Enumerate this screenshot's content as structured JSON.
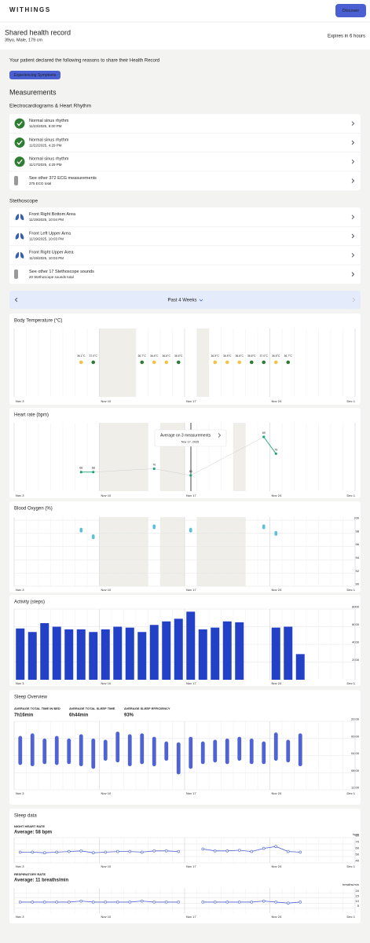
{
  "header": {
    "logo": "WITHINGS",
    "button": "Discover"
  },
  "record": {
    "title": "Shared health record",
    "subtitle": "39yo, Male, 179 cm",
    "expiry": "Expires in 6 hours"
  },
  "reasons": {
    "intro": "Your patient declared the following reasons to share their Health Record",
    "tags": [
      "Experiencing Symptoms"
    ]
  },
  "measurements": {
    "title": "Measurements",
    "ecg": {
      "title": "Electrocardiograms & Heart Rhythm",
      "items": [
        {
          "title": "Normal sinus rhythm",
          "date": "11/23/2025, 8:00 PM"
        },
        {
          "title": "Normal sinus rhythm",
          "date": "11/22/2025, 4:29 PM"
        },
        {
          "title": "Normal sinus rhythm",
          "date": "11/17/2025, 4:29 PM"
        }
      ],
      "more": {
        "title": "See other 372 ECG measurements",
        "subtitle": "375 ECG total"
      }
    },
    "stethoscope": {
      "title": "Stethoscope",
      "items": [
        {
          "title": "Front Right Bottom Area",
          "date": "11/19/2025, 10:04 PM"
        },
        {
          "title": "Front Left Upper Area",
          "date": "11/19/2025, 10:03 PM"
        },
        {
          "title": "Front Right Upper Area",
          "date": "11/19/2025, 10:03 PM"
        }
      ],
      "more": {
        "title": "See other 17 Stethoscope sounds",
        "subtitle": "20 Stethoscope sounds total"
      }
    }
  },
  "period": {
    "label": "Past 4 Weeks"
  },
  "timeline": {
    "xlim": [
      3,
      31
    ],
    "xticks": [
      {
        "value": 3,
        "label": "Nov 3"
      },
      {
        "value": 10,
        "label": "Nov 10"
      },
      {
        "value": 17,
        "label": "Nov 17"
      },
      {
        "value": 24,
        "label": "Nov 24"
      },
      {
        "value": 31,
        "label": "Dec 1"
      }
    ]
  },
  "charts": [
    {
      "type": "dots",
      "title": "Body Temperature (°C)",
      "shaded": [
        [
          10,
          13
        ],
        [
          18,
          19
        ]
      ],
      "x": [
        8,
        9,
        13,
        14,
        15,
        16,
        19,
        20,
        21,
        22,
        23,
        24,
        25
      ],
      "values": [
        36.1,
        37,
        36.7,
        36.6,
        36.6,
        36.6,
        36.5,
        36.5,
        36.6,
        36.6,
        37,
        36.5,
        36.7
      ],
      "value_labels": [
        "36.1°C",
        "37.0°C",
        "36.7°C",
        "36.6°C",
        "36.6°C",
        "36.6°C",
        "36.5°C",
        "36.5°C",
        "36.6°C",
        "36.6°C",
        "37.0°C",
        "36.5°C",
        "36.7°C"
      ],
      "colors": [
        "#f4c245",
        "#2e7d32",
        "#2e7d32",
        "#f4c245",
        "#f4c245",
        "#2e7d32",
        "#f4c245",
        "#f4c245",
        "#f4c245",
        "#2e7d32",
        "#2e7d32",
        "#f4c245",
        "#2e7d32"
      ]
    },
    {
      "type": "linedots",
      "title": "Heart rate (bpm)",
      "shaded": [
        [
          10,
          14
        ],
        [
          15,
          17
        ],
        [
          21,
          22
        ]
      ],
      "x": [
        8,
        9,
        14,
        17,
        23,
        24
      ],
      "values": [
        68,
        68,
        70,
        66,
        89,
        79
      ],
      "color": "#1fa37a",
      "tooltip": {
        "title": "Average on 3 measurements",
        "date": "Nov 17, 2025"
      }
    },
    {
      "type": "pills",
      "title": "Blood Oxygen (%)",
      "shaded": [
        [
          10,
          14
        ],
        [
          15,
          17
        ],
        [
          18,
          22
        ]
      ],
      "x": [
        8,
        9,
        14,
        17,
        23,
        24
      ],
      "values": [
        98.5,
        97.5,
        99,
        98.5,
        99,
        98
      ],
      "color": "#5bc0de",
      "ylim": [
        90,
        100
      ],
      "yticks": [
        90,
        92,
        94,
        96,
        98,
        100
      ]
    },
    {
      "type": "bar",
      "title": "Activity (steps)",
      "x": [
        3,
        4,
        5,
        6,
        7,
        8,
        9,
        10,
        11,
        12,
        13,
        14,
        15,
        16,
        17,
        18,
        19,
        20,
        21,
        24,
        25,
        26
      ],
      "values": [
        5800,
        5400,
        6400,
        6000,
        5700,
        5700,
        5400,
        5700,
        6000,
        5900,
        5400,
        6200,
        6600,
        6900,
        7700,
        5700,
        5900,
        6600,
        6500,
        5900,
        6000,
        2900
      ],
      "color": "#2341c7",
      "ylim": [
        0,
        8000
      ],
      "yticks": [
        2000,
        4000,
        6000,
        8000
      ]
    },
    {
      "type": "rangebar",
      "title": "Sleep Overview",
      "stats": [
        {
          "label": "AVERAGE TOTAL TIME IN BED",
          "value": "7h16min"
        },
        {
          "label": "AVERAGE TOTAL SLEEP TIME",
          "value": "6h44min"
        },
        {
          "label": "AVERAGE SLEEP EFFICIENCY",
          "value": "93%"
        }
      ],
      "x": [
        3,
        4,
        5,
        6,
        7,
        8,
        9,
        10,
        11,
        12,
        13,
        14,
        15,
        16,
        17,
        18,
        19,
        20,
        21,
        22,
        23,
        24,
        25,
        26
      ],
      "start": [
        23.4,
        22.8,
        24.0,
        23.4,
        24.0,
        23.0,
        24.0,
        24.3,
        22.4,
        23.0,
        22.8,
        23.6,
        24.7,
        24.9,
        23.6,
        24.7,
        24.3,
        24.0,
        23.6,
        24.0,
        24.7,
        22.6,
        24.3,
        22.8
      ],
      "end": [
        30.2,
        30.5,
        30.0,
        30.2,
        30.0,
        30.5,
        31.1,
        29.2,
        29.6,
        30.5,
        30.0,
        30.5,
        29.2,
        32.4,
        31.1,
        30.0,
        29.6,
        30.0,
        29.2,
        30.0,
        30.0,
        29.2,
        29.6,
        30.5
      ],
      "color": "#4f63d6",
      "ylim": [
        20,
        36
      ],
      "yticks": [
        {
          "value": 20,
          "label": "20:00"
        },
        {
          "value": 24,
          "label": "00:00"
        },
        {
          "value": 28,
          "label": "04:00"
        },
        {
          "value": 32,
          "label": "08:00"
        },
        {
          "value": 36,
          "label": "12:00"
        }
      ]
    },
    {
      "type": "multiline",
      "title": "Sleep data",
      "panels": [
        {
          "label": "NIGHT HEART RATE",
          "average": "Average: 58 bpm",
          "unit": "bpm",
          "color": "#4f63d6",
          "x": [
            3,
            4,
            5,
            6,
            7,
            8,
            9,
            10,
            11,
            12,
            13,
            14,
            15,
            16,
            17,
            18,
            19,
            20,
            21,
            22,
            23,
            24,
            25,
            26
          ],
          "values": [
            57,
            57,
            56,
            57,
            58,
            59,
            56,
            57,
            58,
            58,
            57,
            59,
            59,
            58,
            null,
            62,
            59,
            59,
            60,
            58,
            63,
            66,
            58,
            57
          ],
          "ylim": [
            40,
            80
          ],
          "yticks": [
            40,
            50,
            60,
            70,
            80
          ]
        },
        {
          "label": "RESPIRATORY RATE",
          "average": "Average: 11 breaths/min",
          "unit": "breaths/min",
          "color": "#4f63d6",
          "x": [
            3,
            4,
            5,
            6,
            7,
            8,
            9,
            10,
            11,
            12,
            13,
            14,
            15,
            16,
            17,
            18,
            19,
            20,
            21,
            22,
            23,
            24,
            25,
            26
          ],
          "values": [
            11,
            11,
            11,
            11,
            11,
            12,
            11,
            11,
            11,
            11,
            12,
            11,
            11,
            11,
            null,
            11,
            11,
            11,
            11,
            11,
            12,
            11,
            10,
            11
          ],
          "ylim": [
            0,
            25
          ],
          "yticks": [
            5,
            10,
            15,
            20
          ]
        }
      ]
    }
  ]
}
